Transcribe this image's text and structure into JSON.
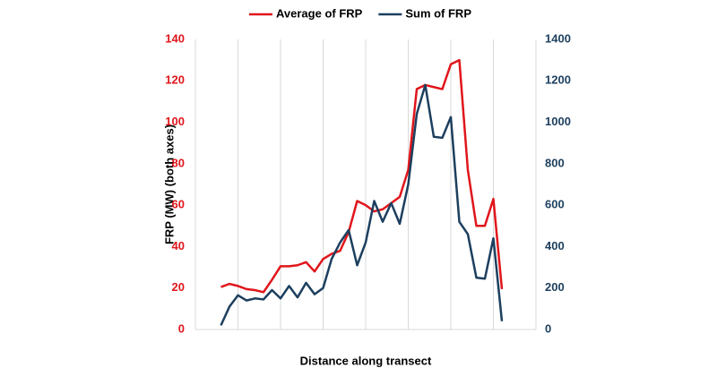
{
  "chart_data": {
    "type": "line",
    "x_label": "Distance along transect",
    "y_label": "FRP (MW) (both axes)",
    "x": [
      3,
      4,
      5,
      6,
      7,
      8,
      9,
      10,
      11,
      12,
      13,
      14,
      15,
      16,
      17,
      18,
      19,
      20,
      21,
      22,
      23,
      24,
      25,
      26,
      27,
      28,
      29,
      30,
      31,
      32,
      33,
      34,
      35,
      36
    ],
    "xlim": [
      0,
      40
    ],
    "xticks": [
      0,
      5,
      10,
      15,
      20,
      25,
      30,
      35,
      40
    ],
    "grid": true,
    "ylim": [
      0,
      140
    ],
    "yticks": [
      0,
      20,
      40,
      60,
      80,
      100,
      120,
      140
    ],
    "y2lim": [
      0,
      1400
    ],
    "y2ticks": [
      0,
      200,
      400,
      600,
      800,
      1000,
      1200,
      1400
    ],
    "legend": "top",
    "series": [
      {
        "name": "Average of FRP",
        "color": "#e0161b",
        "values": [
          20.5,
          22,
          21,
          19.5,
          19,
          18,
          24,
          30.5,
          30.5,
          31,
          32.5,
          28,
          34,
          36.5,
          38,
          47,
          62,
          60,
          57,
          58,
          61,
          64,
          77,
          116,
          118,
          117,
          116,
          128,
          130,
          77,
          50,
          50,
          63,
          19.5
        ]
      },
      {
        "name": "Sum of FRP",
        "color": "#1c3f5e",
        "axis": "y2",
        "values": [
          20,
          110,
          165,
          140,
          150,
          145,
          190,
          150,
          210,
          155,
          225,
          170,
          200,
          340,
          420,
          480,
          310,
          420,
          620,
          520,
          610,
          510,
          700,
          1040,
          1180,
          930,
          925,
          1025,
          520,
          460,
          250,
          245,
          440,
          40
        ]
      }
    ]
  }
}
